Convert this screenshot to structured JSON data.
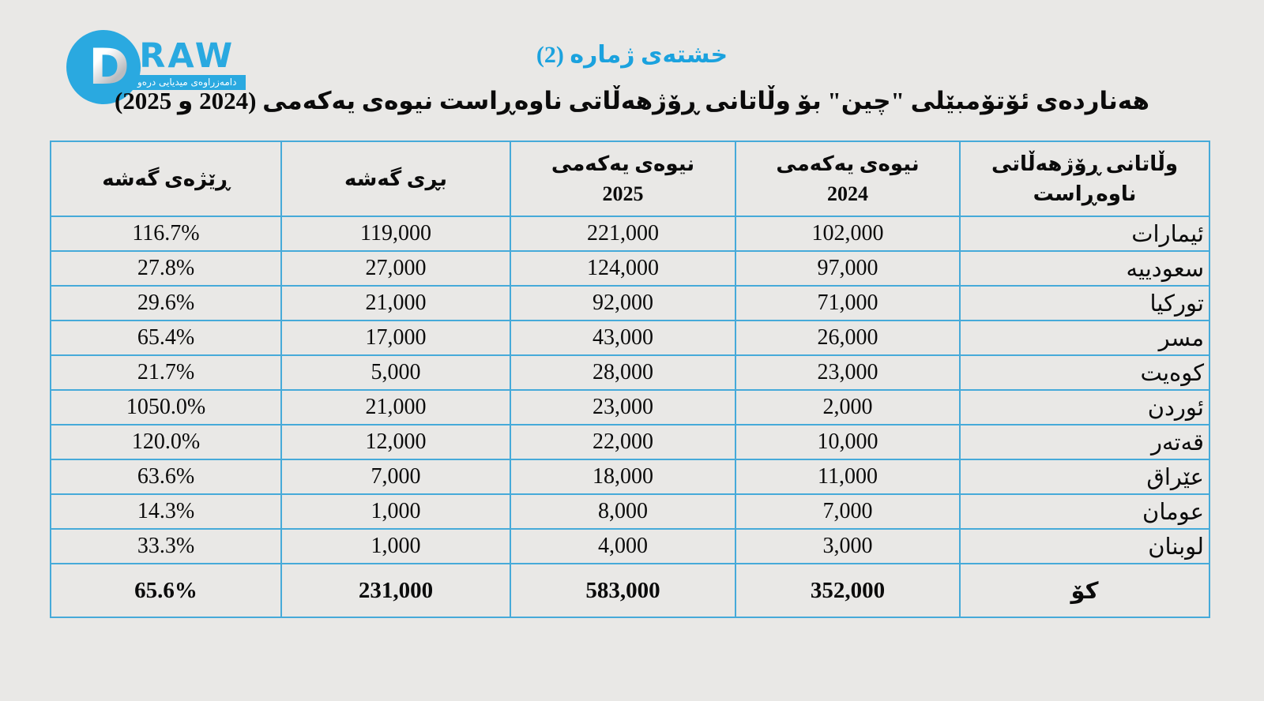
{
  "logo": {
    "initial": "D",
    "wordmark": "RAW",
    "tagline": "دامەزراوەی میدیایی درەو",
    "brand_color": "#2aa9e0"
  },
  "header": {
    "table_label": "خشتەی ژمارە (2)",
    "title": "هەناردەی ئۆتۆمبێلی \"چین\" بۆ وڵاتانی ڕۆژهەڵاتی ناوەڕاست نیوەی یەکەمی (2024 و 2025)",
    "label_color": "#1ba2de"
  },
  "table": {
    "border_color": "#46aad9",
    "columns": [
      {
        "key": "country",
        "lines": [
          "وڵاتانی ڕۆژهەڵاتی",
          "ناوەڕاست"
        ],
        "numeric": false
      },
      {
        "key": "h1_2024",
        "lines": [
          "نیوەی یەکەمی",
          "2024"
        ],
        "numeric": true
      },
      {
        "key": "h1_2025",
        "lines": [
          "نیوەی یەکەمی",
          "2025"
        ],
        "numeric": true
      },
      {
        "key": "growth_amount",
        "lines": [
          "بڕی گەشە"
        ],
        "numeric": true
      },
      {
        "key": "growth_rate",
        "lines": [
          "ڕێژەی گەشە"
        ],
        "numeric": true
      }
    ],
    "rows": [
      {
        "country": "ئیمارات",
        "h1_2024": "102,000",
        "h1_2025": "221,000",
        "growth_amount": "119,000",
        "growth_rate": "116.7%"
      },
      {
        "country": "سعودییه",
        "h1_2024": "97,000",
        "h1_2025": "124,000",
        "growth_amount": "27,000",
        "growth_rate": "27.8%"
      },
      {
        "country": "توركيا",
        "h1_2024": "71,000",
        "h1_2025": "92,000",
        "growth_amount": "21,000",
        "growth_rate": "29.6%"
      },
      {
        "country": "مسر",
        "h1_2024": "26,000",
        "h1_2025": "43,000",
        "growth_amount": "17,000",
        "growth_rate": "65.4%"
      },
      {
        "country": "كوەيت",
        "h1_2024": "23,000",
        "h1_2025": "28,000",
        "growth_amount": "5,000",
        "growth_rate": "21.7%"
      },
      {
        "country": "ئوردن",
        "h1_2024": "2,000",
        "h1_2025": "23,000",
        "growth_amount": "21,000",
        "growth_rate": "1050.0%"
      },
      {
        "country": "قەتەر",
        "h1_2024": "10,000",
        "h1_2025": "22,000",
        "growth_amount": "12,000",
        "growth_rate": "120.0%"
      },
      {
        "country": "عێراق",
        "h1_2024": "11,000",
        "h1_2025": "18,000",
        "growth_amount": "7,000",
        "growth_rate": "63.6%"
      },
      {
        "country": "عومان",
        "h1_2024": "7,000",
        "h1_2025": "8,000",
        "growth_amount": "1,000",
        "growth_rate": "14.3%"
      },
      {
        "country": "لوبنان",
        "h1_2024": "3,000",
        "h1_2025": "4,000",
        "growth_amount": "1,000",
        "growth_rate": "33.3%"
      }
    ],
    "total": {
      "country": "كۆ",
      "h1_2024": "352,000",
      "h1_2025": "583,000",
      "growth_amount": "231,000",
      "growth_rate": "65.6%"
    }
  },
  "chart_data": {
    "type": "table",
    "title": "هەناردەی ئۆتۆمبێلی \"چین\" بۆ وڵاتانی ڕۆژهەڵاتی ناوەڕاست نیوەی یەکەمی (2024 و 2025)",
    "subtitle": "خشتەی ژمارە (2)",
    "columns": [
      "وڵاتانی ڕۆژهەڵاتی ناوەڕاست",
      "نیوەی یەکەمی 2024",
      "نیوەی یەکەمی 2025",
      "بڕی گەشە",
      "ڕێژەی گەشە (%)"
    ],
    "rows": [
      [
        "ئیمارات",
        102000,
        221000,
        119000,
        116.7
      ],
      [
        "سعودییه",
        97000,
        124000,
        27000,
        27.8
      ],
      [
        "توركيا",
        71000,
        92000,
        21000,
        29.6
      ],
      [
        "مسر",
        26000,
        43000,
        17000,
        65.4
      ],
      [
        "كوەيت",
        23000,
        28000,
        5000,
        21.7
      ],
      [
        "ئوردن",
        2000,
        23000,
        21000,
        1050.0
      ],
      [
        "قەتەر",
        10000,
        22000,
        12000,
        120.0
      ],
      [
        "عێراق",
        11000,
        18000,
        7000,
        63.6
      ],
      [
        "عومان",
        7000,
        8000,
        1000,
        14.3
      ],
      [
        "لوبنان",
        3000,
        4000,
        1000,
        33.3
      ]
    ],
    "total_row": [
      "كۆ",
      352000,
      583000,
      231000,
      65.6
    ],
    "layout": {
      "direction": "rtl",
      "grid": true,
      "legend": "none"
    }
  }
}
